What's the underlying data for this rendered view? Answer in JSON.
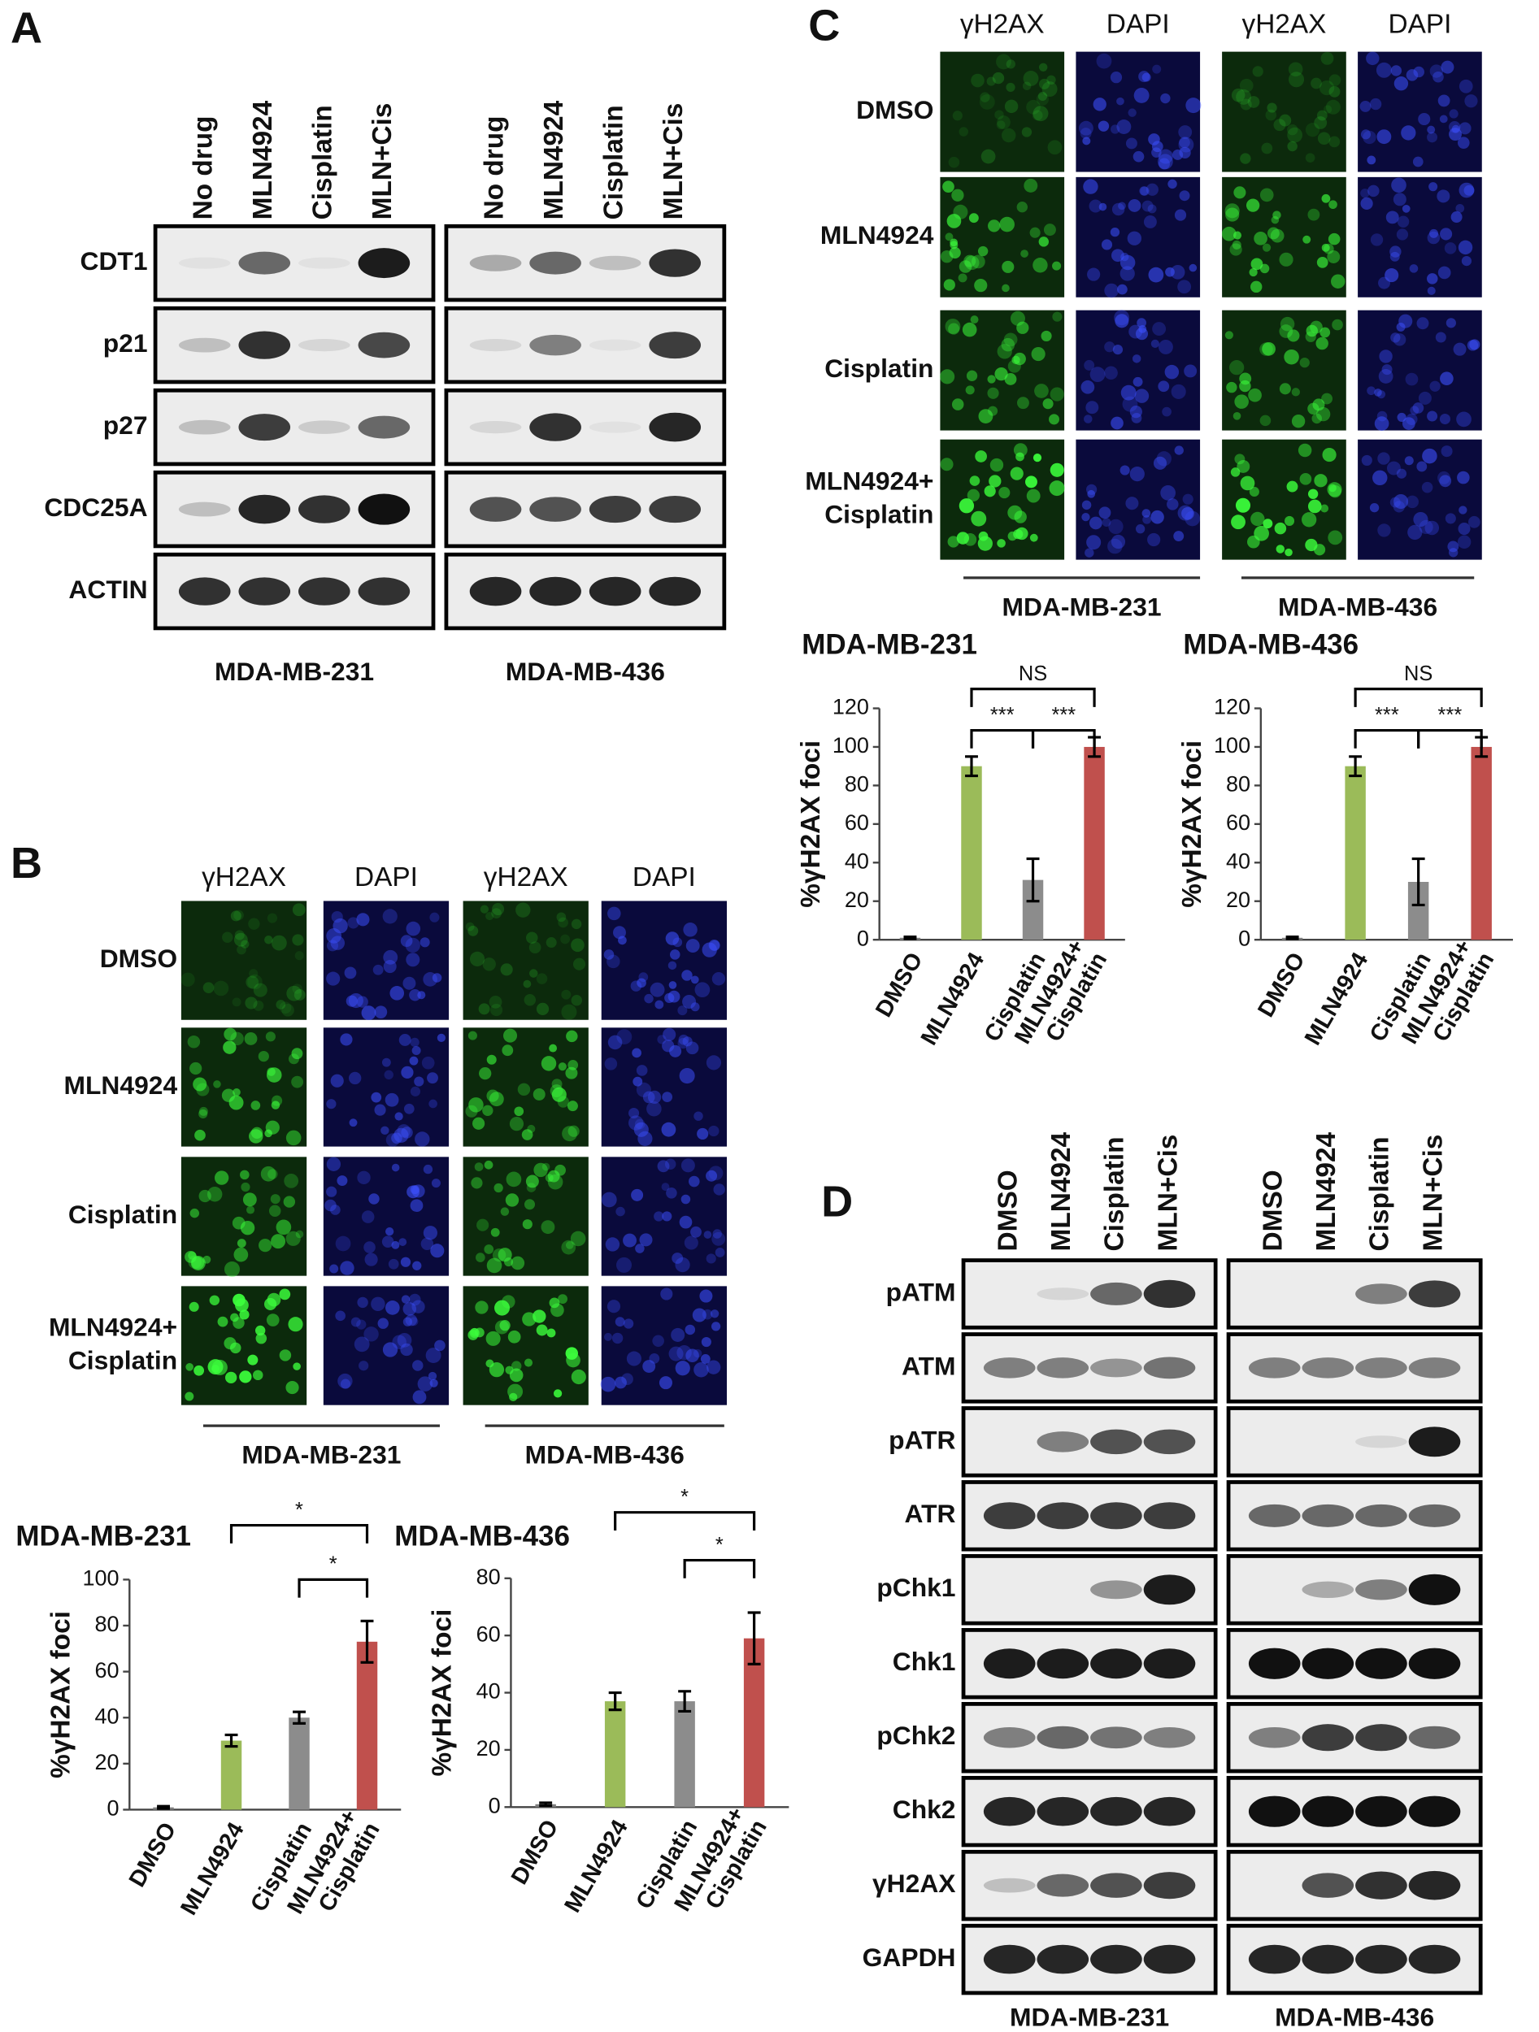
{
  "panels": {
    "a": "A",
    "b": "B",
    "c": "C",
    "d": "D"
  },
  "blot_a": {
    "lanes": [
      "No drug",
      "MLN4924",
      "Cisplatin",
      "MLN+Cis"
    ],
    "proteins": [
      "CDT1",
      "p21",
      "p27",
      "CDC25A",
      "ACTIN"
    ],
    "cell_lines": [
      "MDA-MB-231",
      "MDA-MB-436"
    ]
  },
  "imaging_b": {
    "stains": [
      "γH2AX",
      "DAPI"
    ],
    "treatments": [
      [
        "DMSO"
      ],
      [
        "MLN4924"
      ],
      [
        "Cisplatin"
      ],
      [
        "MLN4924+",
        "Cisplatin"
      ]
    ],
    "cell_lines": [
      "MDA-MB-231",
      "MDA-MB-436"
    ]
  },
  "imaging_c": {
    "stains": [
      "γH2AX",
      "DAPI"
    ],
    "treatments": [
      [
        "DMSO"
      ],
      [
        "MLN4924"
      ],
      [
        "Cisplatin"
      ],
      [
        "MLN4924+",
        "Cisplatin"
      ]
    ],
    "cell_lines": [
      "MDA-MB-231",
      "MDA-MB-436"
    ]
  },
  "blot_d": {
    "lanes": [
      "DMSO",
      "MLN4924",
      "Cisplatin",
      "MLN+Cis"
    ],
    "proteins": [
      "pATM",
      "ATM",
      "pATR",
      "ATR",
      "pChk1",
      "Chk1",
      "pChk2",
      "Chk2",
      "γH2AX",
      "GAPDH"
    ],
    "cell_lines": [
      "MDA-MB-231",
      "MDA-MB-436"
    ]
  },
  "chart_data": [
    {
      "type": "bar",
      "title": "MDA-MB-231",
      "ylabel": "%γH2AX foci",
      "categories": [
        [
          "DMSO"
        ],
        [
          "MLN4924"
        ],
        [
          "Cisplatin"
        ],
        [
          "MLN4924+",
          "Cisplatin"
        ]
      ],
      "values": [
        1,
        30,
        40,
        73
      ],
      "errors": [
        0.5,
        2.5,
        2.5,
        9
      ],
      "colors": [
        "#7f7f7f",
        "#9bbb59",
        "#8c8c8c",
        "#c0504d"
      ],
      "ylim": [
        0,
        100
      ],
      "yticks": [
        0,
        20,
        40,
        60,
        80,
        100
      ],
      "significance": [
        {
          "pair": [
            1,
            3
          ],
          "label": "*"
        },
        {
          "pair": [
            2,
            3
          ],
          "label": "*"
        }
      ]
    },
    {
      "type": "bar",
      "title": "MDA-MB-436",
      "ylabel": "%γH2AX foci",
      "categories": [
        [
          "DMSO"
        ],
        [
          "MLN4924"
        ],
        [
          "Cisplatin"
        ],
        [
          "MLN4924+",
          "Cisplatin"
        ]
      ],
      "values": [
        1,
        37,
        37,
        59
      ],
      "errors": [
        0.5,
        3,
        3.5,
        9
      ],
      "colors": [
        "#7f7f7f",
        "#9bbb59",
        "#8c8c8c",
        "#c0504d"
      ],
      "ylim": [
        0,
        80
      ],
      "yticks": [
        0,
        20,
        40,
        60,
        80
      ],
      "significance": [
        {
          "pair": [
            1,
            3
          ],
          "label": "*"
        },
        {
          "pair": [
            2,
            3
          ],
          "label": "*"
        }
      ]
    },
    {
      "type": "bar",
      "title": "MDA-MB-231",
      "ylabel": "%γH2AX foci",
      "categories": [
        [
          "DMSO"
        ],
        [
          "MLN4924"
        ],
        [
          "Cisplatin"
        ],
        [
          "MLN4924+",
          "Cisplatin"
        ]
      ],
      "values": [
        1,
        90,
        31,
        100
      ],
      "errors": [
        0.5,
        5,
        11,
        5
      ],
      "colors": [
        "#7f7f7f",
        "#9bbb59",
        "#8c8c8c",
        "#c0504d"
      ],
      "ylim": [
        0,
        120
      ],
      "yticks": [
        0,
        20,
        40,
        60,
        80,
        100,
        120
      ],
      "significance": [
        {
          "pair": [
            1,
            3
          ],
          "label": "NS"
        },
        {
          "pair": [
            1,
            2
          ],
          "label": "***"
        },
        {
          "pair": [
            2,
            3
          ],
          "label": "***"
        }
      ]
    },
    {
      "type": "bar",
      "title": "MDA-MB-436",
      "ylabel": "%γH2AX foci",
      "categories": [
        [
          "DMSO"
        ],
        [
          "MLN4924"
        ],
        [
          "Cisplatin"
        ],
        [
          "MLN4924+",
          "Cisplatin"
        ]
      ],
      "values": [
        1,
        90,
        30,
        100
      ],
      "errors": [
        0.5,
        5,
        12,
        5
      ],
      "colors": [
        "#7f7f7f",
        "#9bbb59",
        "#8c8c8c",
        "#c0504d"
      ],
      "ylim": [
        0,
        120
      ],
      "yticks": [
        0,
        20,
        40,
        60,
        80,
        100,
        120
      ],
      "significance": [
        {
          "pair": [
            1,
            3
          ],
          "label": "NS"
        },
        {
          "pair": [
            1,
            2
          ],
          "label": "***"
        },
        {
          "pair": [
            2,
            3
          ],
          "label": "***"
        }
      ]
    }
  ]
}
